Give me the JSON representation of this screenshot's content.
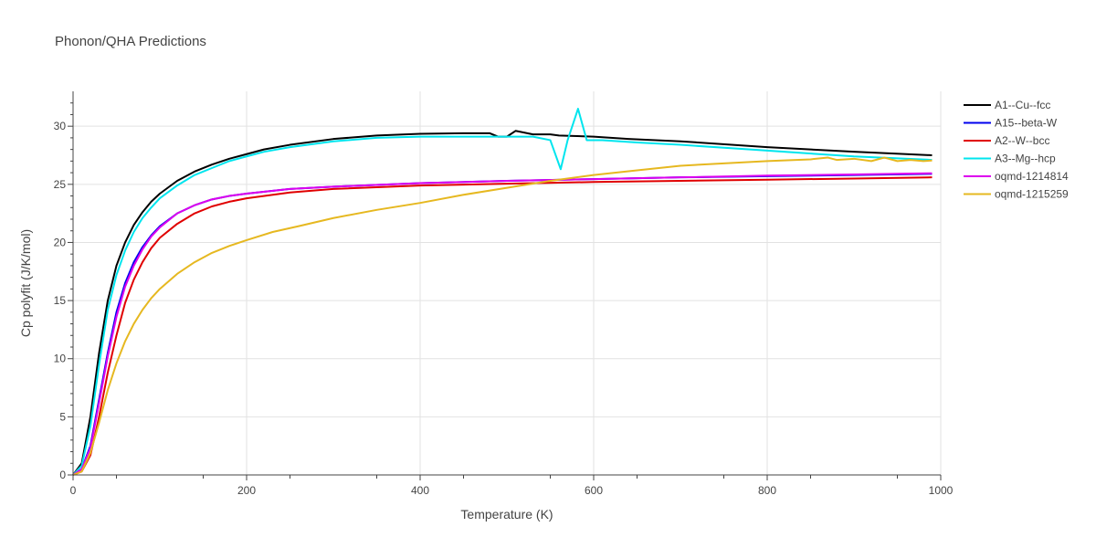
{
  "chart_data": {
    "type": "line",
    "title": "Phonon/QHA Predictions",
    "xlabel": "Temperature (K)",
    "ylabel": "Cp polyfit (J/K/mol)",
    "xlim": [
      0,
      1000
    ],
    "ylim": [
      0,
      33
    ],
    "xticks": [
      0,
      200,
      400,
      600,
      800,
      1000
    ],
    "yticks": [
      0,
      5,
      10,
      15,
      20,
      25,
      30
    ],
    "grid": true,
    "legend_position": "top-right",
    "series": [
      {
        "name": "A1--Cu--fcc",
        "color": "#000000",
        "x": [
          0,
          10,
          20,
          30,
          40,
          50,
          60,
          70,
          80,
          90,
          100,
          120,
          140,
          160,
          180,
          200,
          220,
          250,
          300,
          350,
          400,
          450,
          480,
          490,
          500,
          510,
          530,
          550,
          560,
          600,
          640,
          700,
          800,
          900,
          990
        ],
        "y": [
          0,
          1,
          5,
          10.5,
          15,
          18,
          20,
          21.5,
          22.6,
          23.5,
          24.2,
          25.3,
          26.1,
          26.7,
          27.2,
          27.6,
          28.0,
          28.4,
          28.9,
          29.2,
          29.35,
          29.4,
          29.4,
          29.1,
          29.1,
          29.6,
          29.3,
          29.3,
          29.2,
          29.1,
          28.9,
          28.7,
          28.2,
          27.8,
          27.5
        ]
      },
      {
        "name": "A15--beta-W",
        "color": "#0000ee",
        "x": [
          0,
          10,
          20,
          30,
          40,
          50,
          60,
          70,
          80,
          90,
          100,
          120,
          140,
          160,
          180,
          200,
          250,
          300,
          400,
          500,
          600,
          700,
          800,
          900,
          990
        ],
        "y": [
          0,
          0.5,
          2.5,
          6.5,
          10.5,
          14.0,
          16.5,
          18.3,
          19.6,
          20.6,
          21.4,
          22.5,
          23.2,
          23.7,
          24.0,
          24.2,
          24.6,
          24.8,
          25.1,
          25.3,
          25.45,
          25.6,
          25.7,
          25.8,
          25.9
        ]
      },
      {
        "name": "A2--W--bcc",
        "color": "#e00000",
        "x": [
          0,
          10,
          20,
          30,
          40,
          50,
          60,
          70,
          80,
          90,
          100,
          120,
          140,
          160,
          180,
          200,
          250,
          300,
          400,
          500,
          600,
          700,
          800,
          900,
          990
        ],
        "y": [
          0,
          0.3,
          1.7,
          5.0,
          8.8,
          12.0,
          14.8,
          16.8,
          18.3,
          19.5,
          20.4,
          21.6,
          22.5,
          23.1,
          23.5,
          23.8,
          24.3,
          24.6,
          24.9,
          25.05,
          25.2,
          25.3,
          25.4,
          25.5,
          25.6
        ]
      },
      {
        "name": "A3--Mg--hcp",
        "color": "#00e5ee",
        "x": [
          0,
          10,
          20,
          30,
          40,
          50,
          60,
          70,
          80,
          90,
          100,
          120,
          140,
          160,
          180,
          200,
          220,
          250,
          300,
          350,
          400,
          450,
          500,
          530,
          550,
          562,
          570,
          582,
          592,
          610,
          650,
          700,
          800,
          900,
          990
        ],
        "y": [
          0,
          0.8,
          4.2,
          9.5,
          14.2,
          17.2,
          19.3,
          20.9,
          22.1,
          23.0,
          23.8,
          24.9,
          25.8,
          26.4,
          27.0,
          27.4,
          27.8,
          28.2,
          28.7,
          29.0,
          29.1,
          29.1,
          29.1,
          29.1,
          28.8,
          26.3,
          28.8,
          31.5,
          28.8,
          28.8,
          28.6,
          28.4,
          27.9,
          27.4,
          27.1
        ]
      },
      {
        "name": "oqmd-1214814",
        "color": "#dd00ee",
        "x": [
          0,
          10,
          20,
          30,
          40,
          50,
          60,
          70,
          80,
          90,
          100,
          120,
          140,
          160,
          180,
          200,
          250,
          300,
          400,
          500,
          600,
          700,
          800,
          900,
          990
        ],
        "y": [
          0,
          0.5,
          2.3,
          6.2,
          10.2,
          13.6,
          16.2,
          18.0,
          19.4,
          20.5,
          21.3,
          22.5,
          23.2,
          23.7,
          24.0,
          24.2,
          24.6,
          24.8,
          25.1,
          25.3,
          25.45,
          25.6,
          25.75,
          25.85,
          25.95
        ]
      },
      {
        "name": "oqmd-1215259",
        "color": "#e6b820",
        "x": [
          0,
          10,
          20,
          30,
          40,
          50,
          60,
          70,
          80,
          90,
          100,
          120,
          140,
          160,
          180,
          200,
          230,
          260,
          300,
          350,
          400,
          450,
          500,
          550,
          600,
          650,
          700,
          750,
          800,
          850,
          870,
          880,
          900,
          920,
          935,
          950,
          965,
          980,
          990
        ],
        "y": [
          0,
          0.3,
          1.9,
          4.5,
          7.3,
          9.6,
          11.5,
          13.0,
          14.2,
          15.2,
          16.0,
          17.3,
          18.3,
          19.1,
          19.7,
          20.2,
          20.9,
          21.4,
          22.1,
          22.8,
          23.4,
          24.1,
          24.7,
          25.3,
          25.8,
          26.2,
          26.6,
          26.8,
          27.0,
          27.15,
          27.3,
          27.1,
          27.2,
          27.0,
          27.3,
          27.0,
          27.1,
          27.0,
          27.05
        ]
      }
    ]
  }
}
